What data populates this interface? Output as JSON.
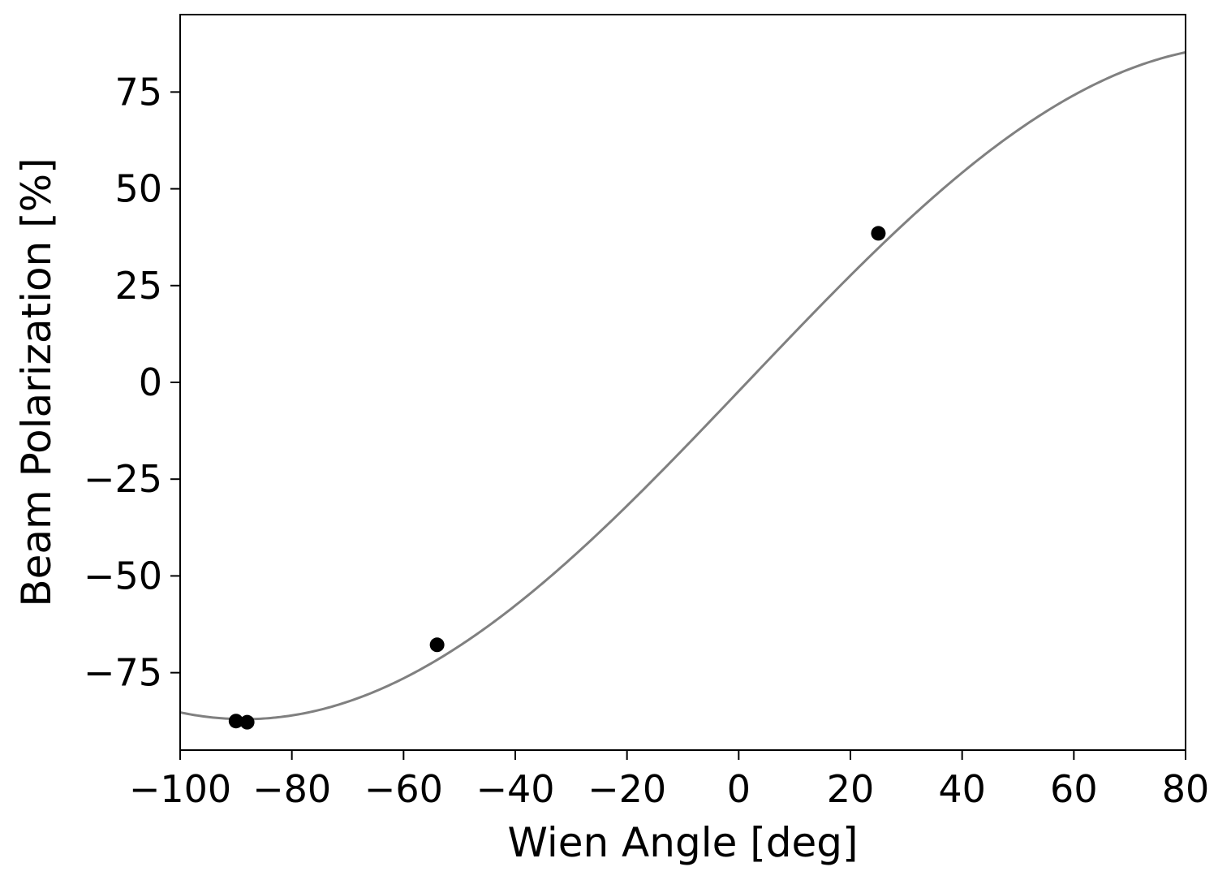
{
  "chart_data": {
    "type": "scatter",
    "title": "",
    "xlabel": "Wien Angle [deg]",
    "ylabel": "Beam Polarization [%]",
    "xlim": [
      -100,
      80
    ],
    "ylim": [
      -95,
      95
    ],
    "xticks": [
      -100,
      -80,
      -60,
      -40,
      -20,
      0,
      20,
      40,
      60,
      80
    ],
    "yticks": [
      -75,
      -50,
      -25,
      0,
      25,
      50,
      75
    ],
    "xtick_labels": [
      "−100",
      "−80",
      "−60",
      "−40",
      "−20",
      "0",
      "20",
      "40",
      "60",
      "80"
    ],
    "ytick_labels": [
      "−75",
      "−50",
      "−25",
      "0",
      "25",
      "50",
      "75"
    ],
    "grid": false,
    "series": [
      {
        "kind": "points",
        "color": "#000000",
        "x": [
          -90,
          -88,
          -54,
          25
        ],
        "y": [
          -87.5,
          -87.8,
          -67.8,
          38.5
        ]
      },
      {
        "kind": "fit_curve",
        "color": "#808080",
        "amplitude": 87,
        "phase_deg": -1.5,
        "model": "amplitude * sin(x + phase)"
      }
    ]
  }
}
